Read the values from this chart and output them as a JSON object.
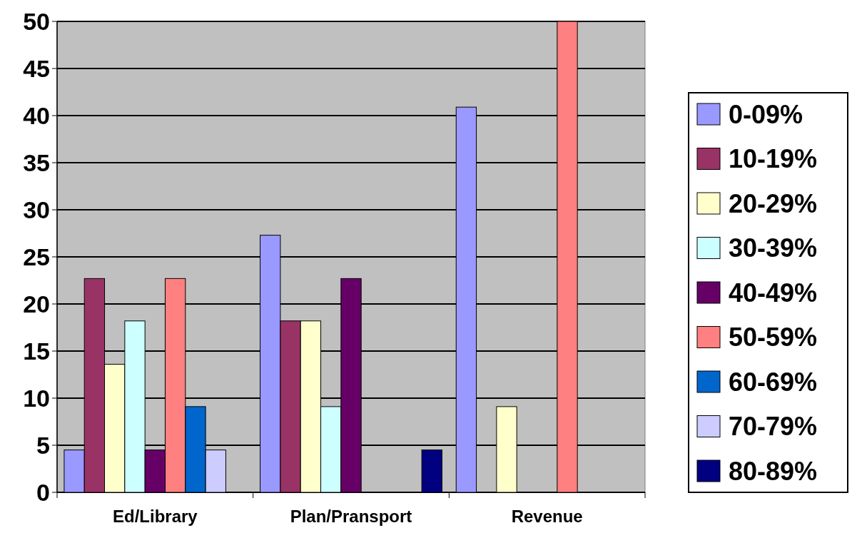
{
  "chart_data": {
    "type": "bar",
    "categories": [
      "Ed/Library",
      "Plan/Pransport",
      "Revenue"
    ],
    "series": [
      {
        "name": "0-09%",
        "color": "#9999ff",
        "values": [
          4.5,
          27.3,
          40.9
        ]
      },
      {
        "name": "10-19%",
        "color": "#993366",
        "values": [
          22.7,
          18.2,
          null
        ]
      },
      {
        "name": "20-29%",
        "color": "#ffffcc",
        "values": [
          13.6,
          18.2,
          9.1
        ]
      },
      {
        "name": "30-39%",
        "color": "#ccffff",
        "values": [
          18.2,
          9.1,
          null
        ]
      },
      {
        "name": "40-49%",
        "color": "#660066",
        "values": [
          4.5,
          22.7,
          null
        ]
      },
      {
        "name": "50-59%",
        "color": "#ff8080",
        "values": [
          22.7,
          null,
          50
        ]
      },
      {
        "name": "60-69%",
        "color": "#0066cc",
        "values": [
          9.1,
          null,
          null
        ]
      },
      {
        "name": "70-79%",
        "color": "#ccccff",
        "values": [
          4.5,
          null,
          null
        ]
      },
      {
        "name": "80-89%",
        "color": "#000080",
        "values": [
          null,
          4.5,
          null
        ]
      }
    ],
    "ylim": [
      0,
      50
    ],
    "yticks": [
      0,
      5,
      10,
      15,
      20,
      25,
      30,
      35,
      40,
      45,
      50
    ],
    "grid": "y",
    "legend": "right"
  }
}
